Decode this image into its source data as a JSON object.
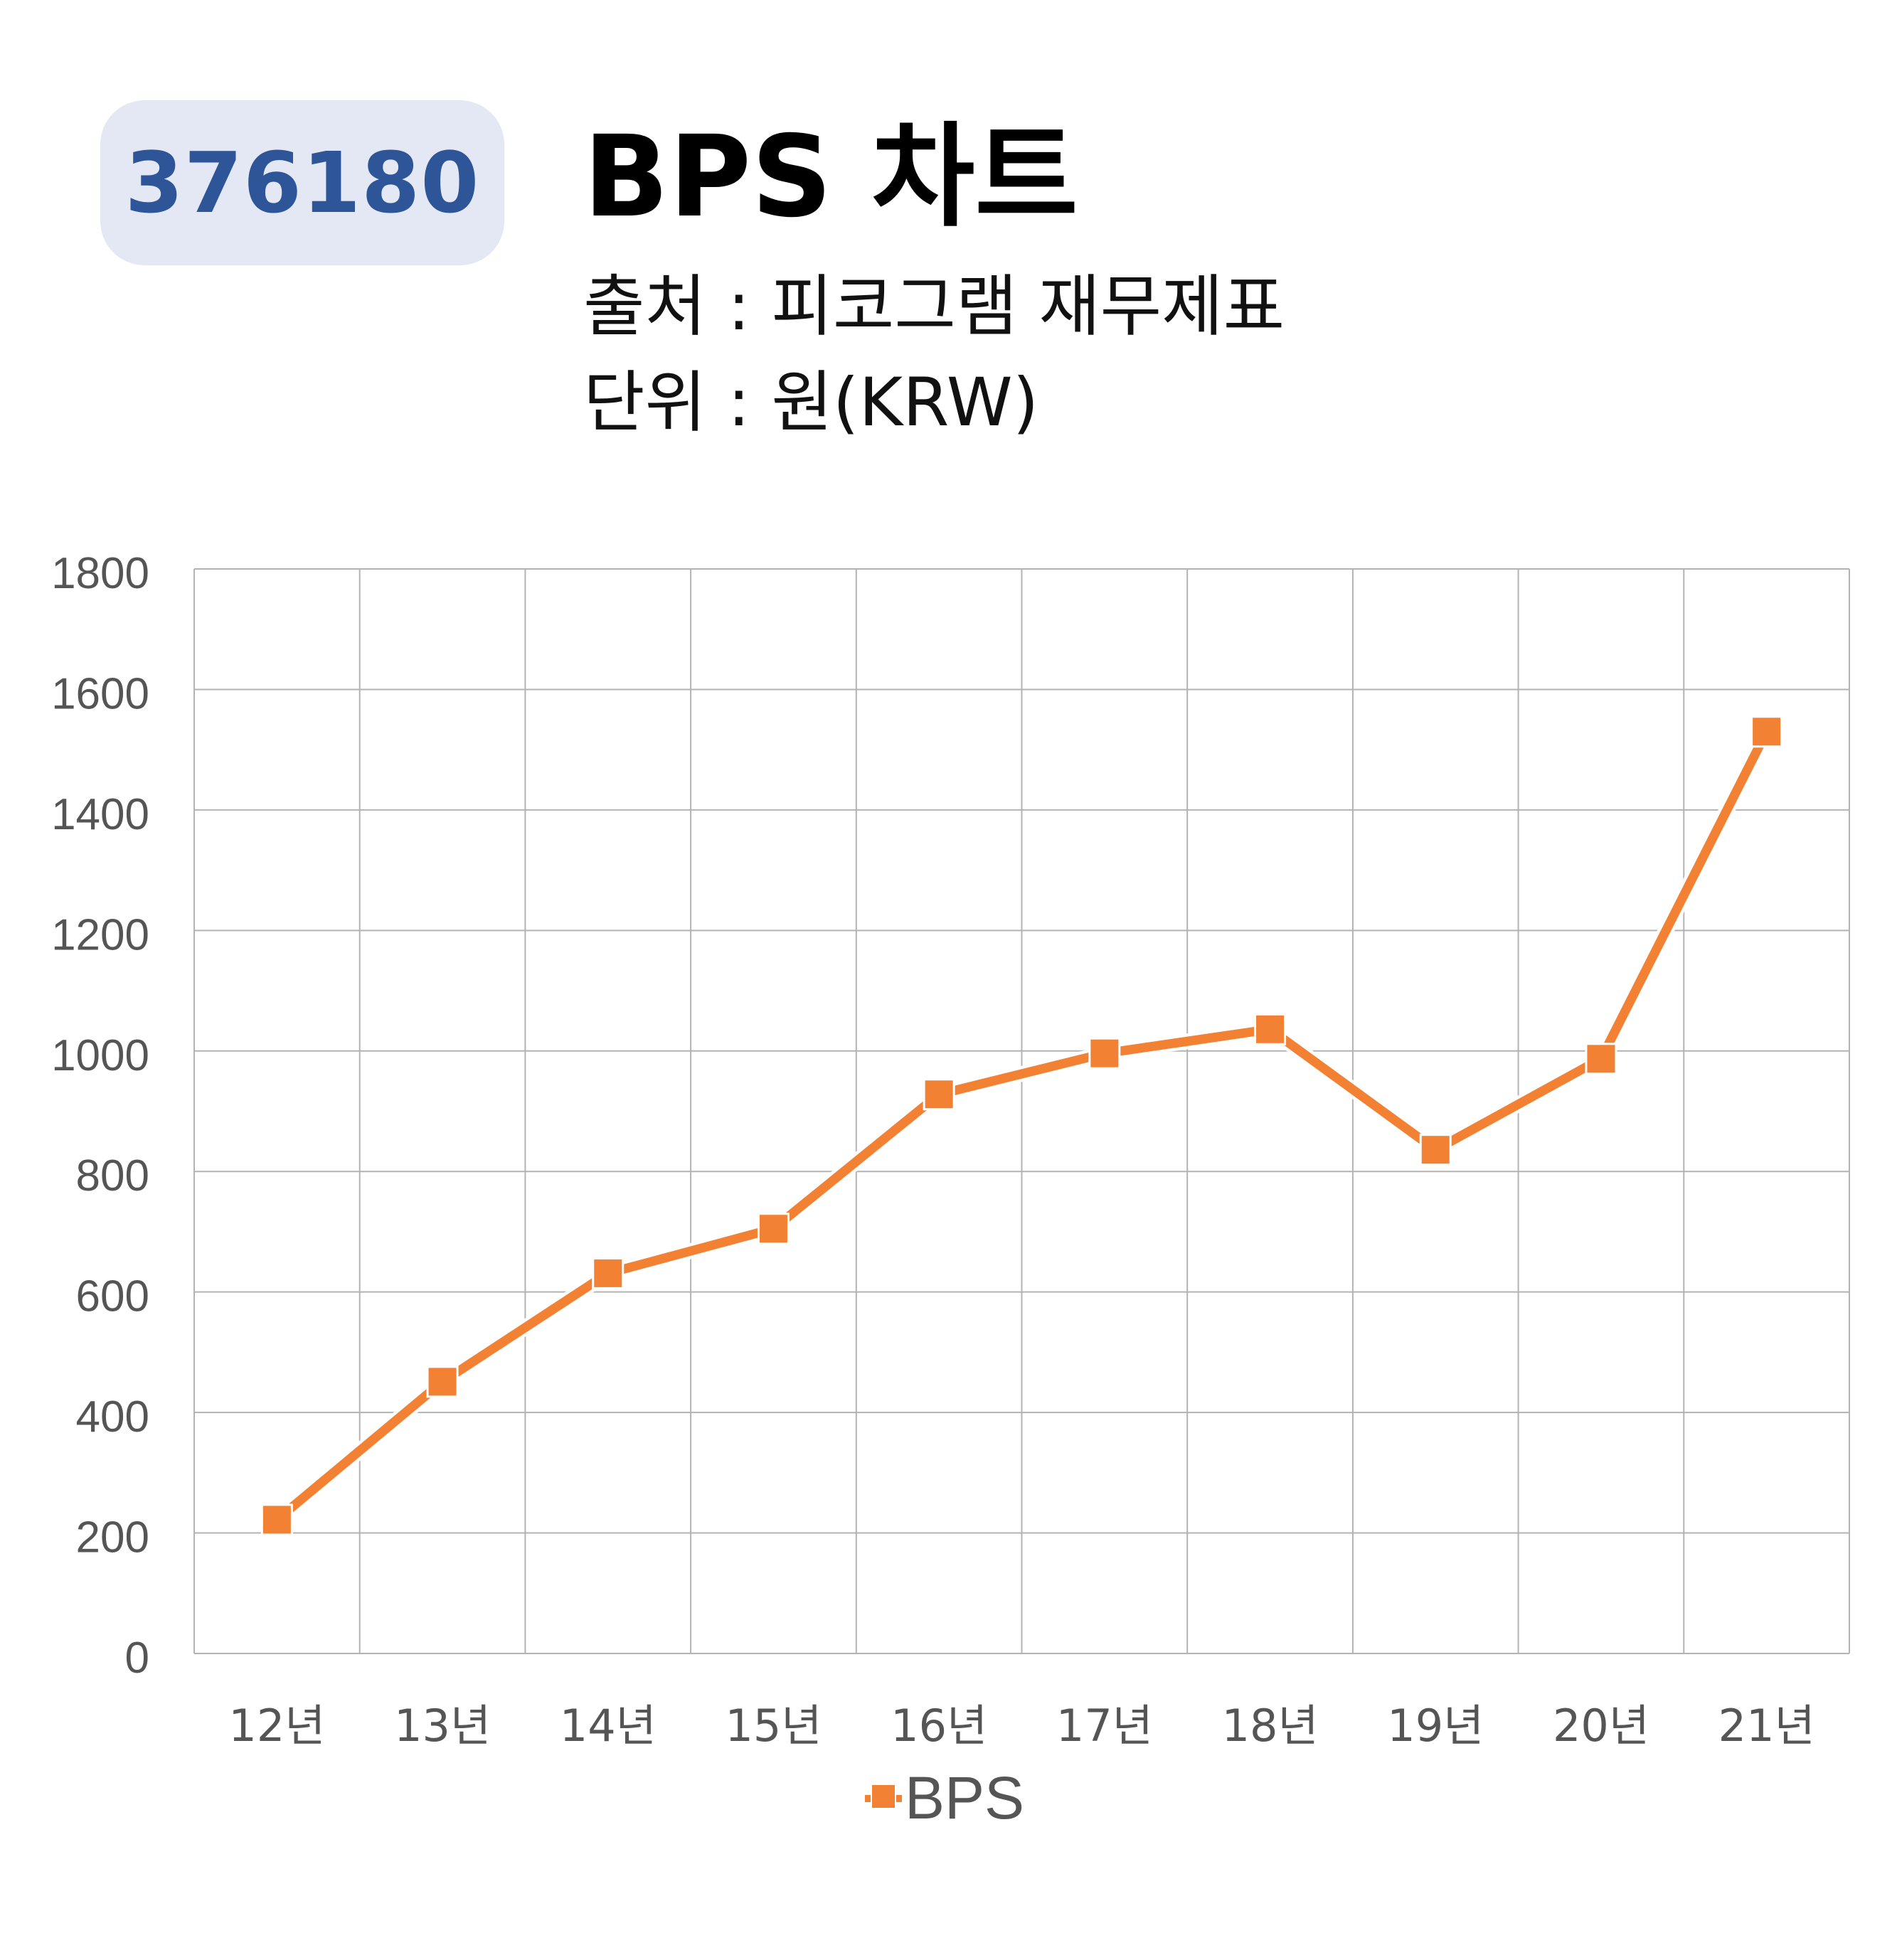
{
  "badge": {
    "code": "376180"
  },
  "header": {
    "title": "BPS 차트",
    "source": "출처 : 피코그램 재무제표",
    "unit": "단위 : 원(KRW)"
  },
  "chart_data": {
    "type": "line",
    "categories": [
      "12년",
      "13년",
      "14년",
      "15년",
      "16년",
      "17년",
      "18년",
      "19년",
      "20년",
      "21년"
    ],
    "series": [
      {
        "name": "BPS",
        "values": [
          222,
          451,
          631,
          705,
          928,
          996,
          1036,
          836,
          987,
          1530
        ],
        "color": "#f28133"
      }
    ],
    "ylim": [
      0,
      1800
    ],
    "yticks": [
      "0",
      "200",
      "400",
      "600",
      "800",
      "1000",
      "1200",
      "1400",
      "1600",
      "1800"
    ],
    "grid": true,
    "legend": "bottom",
    "marker": "square"
  }
}
